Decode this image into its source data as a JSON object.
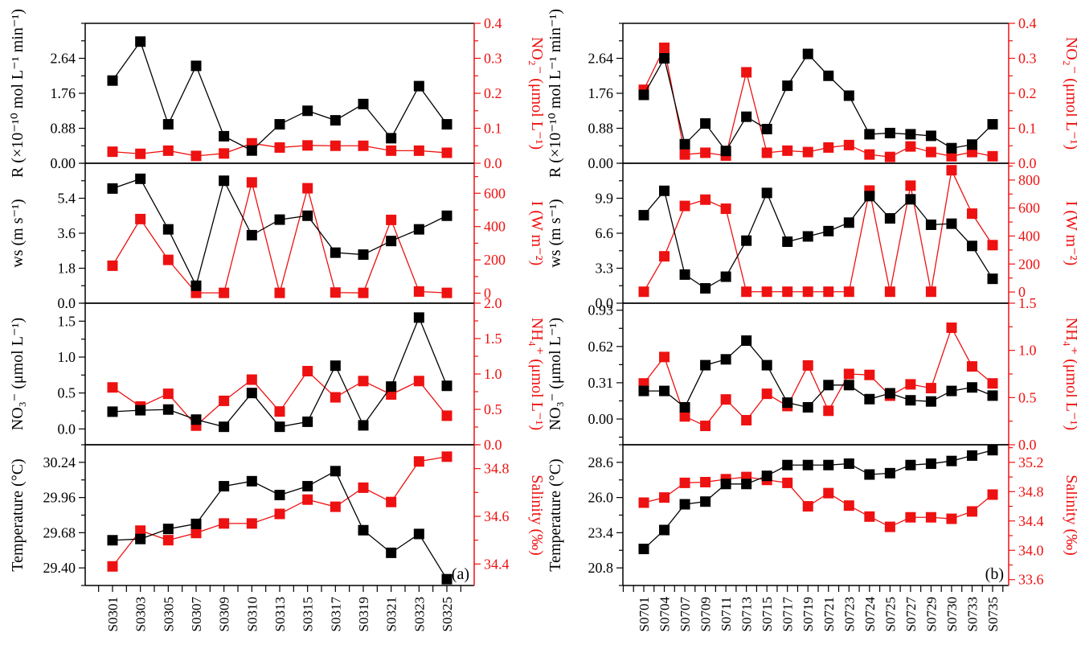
{
  "chart_data": [
    {
      "panel": "(a)",
      "type": "line",
      "categories": [
        "S0301",
        "S0303",
        "S0305",
        "S0307",
        "S0309",
        "S0310",
        "S0313",
        "S0315",
        "S0317",
        "S0319",
        "S0321",
        "S0323",
        "S0325"
      ],
      "subplots": [
        {
          "left": {
            "label": "R (×10⁻¹⁰ mol L⁻¹ min⁻¹)",
            "ticks": [
              "0.00",
              "0.88",
              "1.76",
              "2.64"
            ],
            "range": [
              0,
              3.52
            ],
            "tick_values": [
              0,
              0.88,
              1.76,
              2.64
            ],
            "minor_step": 0.44,
            "values": [
              2.08,
              3.06,
              0.98,
              2.45,
              0.68,
              0.32,
              0.98,
              1.32,
              1.08,
              1.49,
              0.63,
              1.94,
              0.98
            ]
          },
          "right": {
            "label": "NO₂⁻ (μmol L⁻¹)",
            "ticks": [
              "0.0",
              "0.1",
              "0.2",
              "0.3",
              "0.4"
            ],
            "range": [
              0,
              0.4
            ],
            "tick_values": [
              0,
              0.1,
              0.2,
              0.3,
              0.4
            ],
            "minor_step": 0.05,
            "values": [
              0.033,
              0.027,
              0.036,
              0.021,
              0.028,
              0.057,
              0.045,
              0.051,
              0.05,
              0.05,
              0.036,
              0.036,
              0.03
            ]
          }
        },
        {
          "left": {
            "label": "ws (m s⁻¹)",
            "ticks": [
              "0.0",
              "1.8",
              "3.6",
              "5.4"
            ],
            "range": [
              0,
              7.2
            ],
            "tick_values": [
              0,
              1.8,
              3.6,
              5.4
            ],
            "minor_step": 0.9,
            "values": [
              5.9,
              6.4,
              3.8,
              0.9,
              6.3,
              3.5,
              4.3,
              4.5,
              2.6,
              2.5,
              3.2,
              3.8,
              4.5
            ]
          },
          "right": {
            "label": "I (W m⁻²)",
            "ticks": [
              "0",
              "200",
              "400",
              "600"
            ],
            "range": [
              -60,
              780
            ],
            "tick_values": [
              0,
              200,
              400,
              600
            ],
            "minor_step": 100,
            "values": [
              165,
              445,
              200,
              2,
              2,
              665,
              2,
              630,
              4,
              2,
              440,
              10,
              2
            ]
          }
        },
        {
          "left": {
            "label": "NO₃⁻ (μmol L⁻¹)",
            "ticks": [
              "0.0",
              "0.5",
              "1.0",
              "1.5"
            ],
            "range": [
              -0.22,
              1.75
            ],
            "tick_values": [
              0,
              0.5,
              1.0,
              1.5
            ],
            "minor_step": 0.25,
            "values": [
              0.24,
              0.26,
              0.27,
              0.13,
              0.03,
              0.5,
              0.03,
              0.1,
              0.88,
              0.05,
              0.59,
              1.55,
              0.6
            ]
          },
          "right": {
            "label": "NH₄⁺ (μmol L⁻¹)",
            "ticks": [
              "0.0",
              "0.5",
              "1.0",
              "1.5",
              "2.0"
            ],
            "range": [
              0,
              2.0
            ],
            "tick_values": [
              0,
              0.5,
              1.0,
              1.5,
              2.0
            ],
            "minor_step": 0.25,
            "values": [
              0.81,
              0.54,
              0.72,
              0.27,
              0.62,
              0.92,
              0.47,
              1.04,
              0.67,
              0.9,
              0.71,
              0.9,
              0.41
            ]
          }
        },
        {
          "left": {
            "label": "Temperature (°C)",
            "ticks": [
              "29.40",
              "29.68",
              "29.96",
              "30.24"
            ],
            "range": [
              29.26,
              30.38
            ],
            "tick_values": [
              29.4,
              29.68,
              29.96,
              30.24
            ],
            "minor_step": 0.14,
            "values": [
              29.62,
              29.63,
              29.71,
              29.75,
              30.05,
              30.09,
              29.98,
              30.05,
              30.17,
              29.7,
              29.52,
              29.67,
              29.31
            ]
          },
          "right": {
            "label": "Salinity (‰)",
            "ticks": [
              "34.4",
              "34.6",
              "34.8"
            ],
            "range": [
              34.31,
              34.9
            ],
            "tick_values": [
              34.4,
              34.6,
              34.8
            ],
            "minor_step": 0.1,
            "values": [
              34.39,
              34.54,
              34.5,
              34.53,
              34.57,
              34.57,
              34.61,
              34.67,
              34.64,
              34.72,
              34.66,
              34.83,
              34.85
            ]
          }
        }
      ]
    },
    {
      "panel": "(b)",
      "type": "line",
      "categories": [
        "S0701",
        "S0704",
        "S0707",
        "S0709",
        "S0711",
        "S0713",
        "S0715",
        "S0717",
        "S0719",
        "S0721",
        "S0723",
        "S0724",
        "S0725",
        "S0727",
        "S0729",
        "S0730",
        "S0733",
        "S0735"
      ],
      "subplots": [
        {
          "left": {
            "label": "R (×10⁻¹⁰ mol L⁻¹ min⁻¹)",
            "ticks": [
              "0.00",
              "0.88",
              "1.76",
              "2.64"
            ],
            "range": [
              0,
              3.52
            ],
            "tick_values": [
              0,
              0.88,
              1.76,
              2.64
            ],
            "minor_step": 0.44,
            "values": [
              1.72,
              2.64,
              0.48,
              1.0,
              0.31,
              1.17,
              0.86,
              1.95,
              2.75,
              2.2,
              1.7,
              0.73,
              0.76,
              0.73,
              0.69,
              0.38,
              0.47,
              0.98
            ]
          },
          "right": {
            "label": "NO₂⁻ (μmol L⁻¹)",
            "ticks": [
              "0.0",
              "0.1",
              "0.2",
              "0.3",
              "0.4"
            ],
            "range": [
              0,
              0.4
            ],
            "tick_values": [
              0,
              0.1,
              0.2,
              0.3,
              0.4
            ],
            "minor_step": 0.05,
            "values": [
              0.21,
              0.33,
              0.025,
              0.03,
              0.022,
              0.26,
              0.03,
              0.036,
              0.032,
              0.045,
              0.052,
              0.025,
              0.018,
              0.048,
              0.032,
              0.02,
              0.032,
              0.02
            ]
          }
        },
        {
          "left": {
            "label": "ws (m s⁻¹)",
            "ticks": [
              "0.0",
              "3.3",
              "6.6",
              "9.9"
            ],
            "range": [
              0,
              13.2
            ],
            "tick_values": [
              0,
              3.3,
              6.6,
              9.9
            ],
            "minor_step": 1.65,
            "values": [
              8.3,
              10.6,
              2.7,
              1.4,
              2.5,
              5.9,
              10.4,
              5.8,
              6.3,
              6.8,
              7.6,
              10.1,
              8.0,
              9.8,
              7.4,
              7.5,
              5.4,
              2.3
            ]
          },
          "right": {
            "label": "I (W m⁻²)",
            "ticks": [
              "0",
              "200",
              "400",
              "600",
              "800"
            ],
            "range": [
              -80,
              920
            ],
            "tick_values": [
              0,
              200,
              400,
              600,
              800
            ],
            "minor_step": 100,
            "values": [
              2,
              255,
              615,
              660,
              595,
              2,
              2,
              2,
              2,
              2,
              2,
              725,
              2,
              760,
              2,
              870,
              560,
              335
            ]
          }
        },
        {
          "left": {
            "label": "NO₃⁻ (μmol L⁻¹)",
            "ticks": [
              "0.00",
              "0.31",
              "0.62",
              "0.93"
            ],
            "range": [
              -0.22,
              0.99
            ],
            "tick_values": [
              0,
              0.31,
              0.62,
              0.93
            ],
            "minor_step": 0.155,
            "values": [
              0.24,
              0.24,
              0.1,
              0.46,
              0.51,
              0.67,
              0.46,
              0.14,
              0.1,
              0.29,
              0.29,
              0.17,
              0.22,
              0.16,
              0.15,
              0.24,
              0.27,
              0.2
            ]
          },
          "right": {
            "label": "NH₄⁺ (μmol L⁻¹)",
            "ticks": [
              "0.0",
              "0.5",
              "1.0",
              "1.5"
            ],
            "range": [
              0,
              1.5
            ],
            "tick_values": [
              0,
              0.5,
              1.0,
              1.5
            ],
            "minor_step": 0.25,
            "values": [
              0.65,
              0.93,
              0.3,
              0.2,
              0.48,
              0.26,
              0.54,
              0.41,
              0.84,
              0.36,
              0.75,
              0.74,
              0.52,
              0.64,
              0.6,
              1.24,
              0.83,
              0.65
            ]
          }
        },
        {
          "left": {
            "label": "Temperature (°C)",
            "ticks": [
              "20.8",
              "23.4",
              "26.0",
              "28.6"
            ],
            "range": [
              19.5,
              29.9
            ],
            "tick_values": [
              20.8,
              23.4,
              26.0,
              28.6
            ],
            "minor_step": 1.3,
            "values": [
              22.2,
              23.6,
              25.5,
              25.7,
              27.0,
              27.0,
              27.6,
              28.4,
              28.4,
              28.4,
              28.5,
              27.7,
              27.8,
              28.4,
              28.5,
              28.7,
              29.1,
              29.5
            ]
          },
          "right": {
            "label": "Salinity (‰)",
            "ticks": [
              "33.6",
              "34.0",
              "34.4",
              "34.8",
              "35.2"
            ],
            "range": [
              33.52,
              35.44
            ],
            "tick_values": [
              33.6,
              34.0,
              34.4,
              34.8,
              35.2
            ],
            "minor_step": 0.2,
            "values": [
              34.65,
              34.72,
              34.92,
              34.93,
              34.97,
              35.0,
              34.96,
              34.92,
              34.6,
              34.78,
              34.61,
              34.46,
              34.32,
              34.45,
              34.45,
              34.43,
              34.53,
              34.76
            ]
          }
        }
      ]
    }
  ],
  "colors": {
    "left_series": "#000000",
    "right_series": "#ee1111",
    "right_axis": "#ee1111"
  }
}
